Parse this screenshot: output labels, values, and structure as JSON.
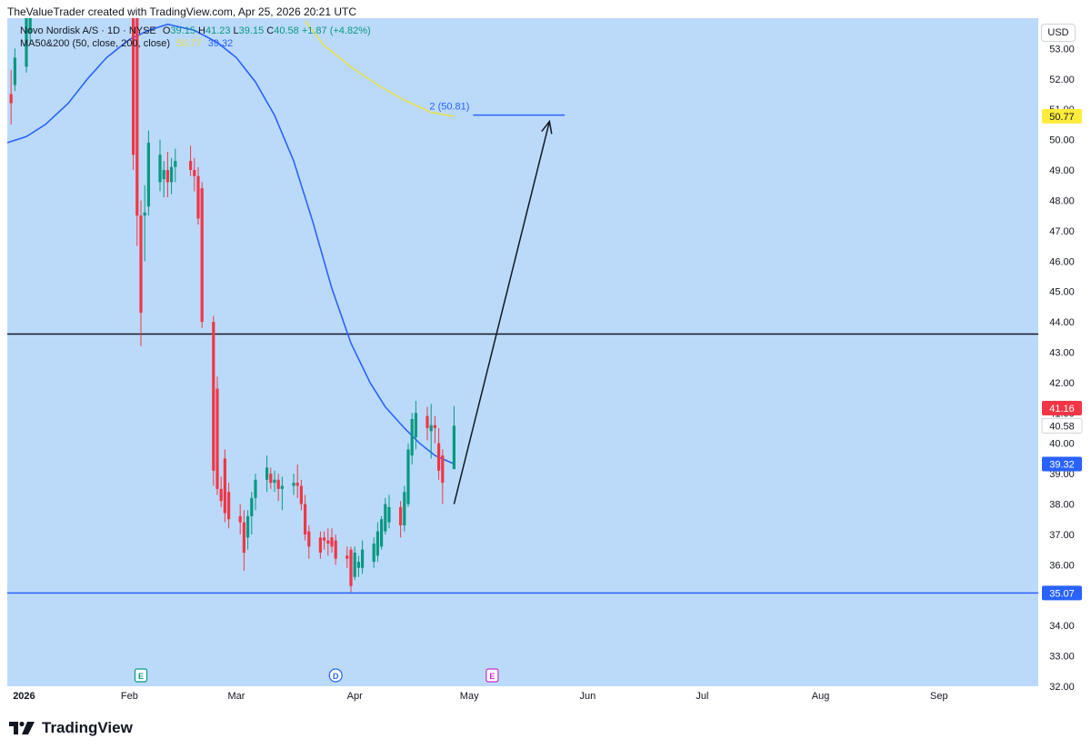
{
  "header": {
    "credit": "TheValueTrader created with TradingView.com, Apr 25, 2026 20:21 UTC"
  },
  "legend": {
    "symbol": "Novo Nordisk A/S · 1D · NYSE",
    "open_label": "O",
    "open": "39.15",
    "high_label": "H",
    "high": "41.23",
    "low_label": "L",
    "low": "39.15",
    "close_label": "C",
    "close": "40.58",
    "change": "+1.87 (+4.82%)",
    "indicator": "MA50&200 (50, close, 200, close)",
    "ma200_value": "50.77",
    "ma50_value": "39.32"
  },
  "currency_badge": "USD",
  "footer": {
    "brand": "TradingView",
    "logo_icon": "tradingview-logo-icon"
  },
  "colors": {
    "background": "#bbdafa",
    "candle_up": "#089981",
    "candle_down": "#f23645",
    "ma50": "#2962ff",
    "ma200": "#e8e050",
    "resistance": "#131722",
    "support": "#2962ff"
  },
  "chart_data": {
    "type": "candlestick",
    "ylim": [
      32,
      54
    ],
    "yticks": [
      "32.00",
      "33.00",
      "34.00",
      "35.00",
      "36.00",
      "37.00",
      "38.00",
      "39.00",
      "40.00",
      "41.00",
      "42.00",
      "43.00",
      "44.00",
      "45.00",
      "46.00",
      "47.00",
      "48.00",
      "49.00",
      "50.00",
      "51.00",
      "52.00",
      "53.00"
    ],
    "x_tick_labels": [
      "2026",
      "Feb",
      "Mar",
      "Apr",
      "May",
      "Jun",
      "Jul",
      "Aug",
      "Sep"
    ],
    "x_tick_dates": [
      "2026-01-01",
      "2026-02-01",
      "2026-03-01",
      "2026-04-01",
      "2026-05-01",
      "2026-06-01",
      "2026-07-01",
      "2026-08-01",
      "2026-09-01"
    ],
    "x_start_date": "2025-12-31",
    "x_end_date": "2026-09-27",
    "price_badges": [
      {
        "value": "50.77",
        "bg": "#ffeb3b",
        "fg": "#131722",
        "y": 50.77
      },
      {
        "value": "41.16",
        "bg": "#f23645",
        "fg": "#ffffff",
        "y": 41.16
      },
      {
        "value": "40.58",
        "bg": "#ffffff",
        "fg": "#131722",
        "y": 40.58
      },
      {
        "value": "39.32",
        "bg": "#2962ff",
        "fg": "#ffffff",
        "y": 39.32
      },
      {
        "value": "35.07",
        "bg": "#2962ff",
        "fg": "#ffffff",
        "y": 35.07
      }
    ],
    "candles": [
      {
        "date": "2026-01-01",
        "o": 51.5,
        "h": 52.3,
        "l": 50.5,
        "c": 51.2
      },
      {
        "date": "2026-01-02",
        "o": 51.8,
        "h": 53.0,
        "l": 51.6,
        "c": 52.7
      },
      {
        "date": "2026-01-05",
        "o": 52.4,
        "h": 55.0,
        "l": 52.2,
        "c": 54.8
      },
      {
        "date": "2026-01-06",
        "o": 53.5,
        "h": 55.0,
        "l": 53.2,
        "c": 54.5
      },
      {
        "date": "2026-02-02",
        "o": 54.0,
        "h": 54.5,
        "l": 49.0,
        "c": 49.5
      },
      {
        "date": "2026-02-03",
        "o": 54.0,
        "h": 54.5,
        "l": 46.5,
        "c": 47.5
      },
      {
        "date": "2026-02-04",
        "o": 47.5,
        "h": 48.0,
        "l": 43.2,
        "c": 44.3
      },
      {
        "date": "2026-02-05",
        "o": 47.5,
        "h": 48.5,
        "l": 46.0,
        "c": 47.6
      },
      {
        "date": "2026-02-06",
        "o": 47.8,
        "h": 50.3,
        "l": 47.5,
        "c": 49.9
      },
      {
        "date": "2026-02-09",
        "o": 48.6,
        "h": 50.0,
        "l": 48.3,
        "c": 49.5
      },
      {
        "date": "2026-02-10",
        "o": 48.7,
        "h": 49.3,
        "l": 48.1,
        "c": 49.0
      },
      {
        "date": "2026-02-11",
        "o": 49.0,
        "h": 49.6,
        "l": 48.1,
        "c": 48.6
      },
      {
        "date": "2026-02-12",
        "o": 48.6,
        "h": 49.4,
        "l": 48.2,
        "c": 49.1
      },
      {
        "date": "2026-02-13",
        "o": 49.1,
        "h": 49.7,
        "l": 48.6,
        "c": 49.3
      },
      {
        "date": "2026-02-17",
        "o": 49.3,
        "h": 49.8,
        "l": 48.8,
        "c": 49.0
      },
      {
        "date": "2026-02-18",
        "o": 49.0,
        "h": 49.4,
        "l": 48.3,
        "c": 48.8
      },
      {
        "date": "2026-02-19",
        "o": 48.8,
        "h": 49.1,
        "l": 47.2,
        "c": 47.4
      },
      {
        "date": "2026-02-20",
        "o": 48.4,
        "h": 48.6,
        "l": 43.8,
        "c": 44.0
      },
      {
        "date": "2026-02-23",
        "o": 44.0,
        "h": 44.2,
        "l": 38.6,
        "c": 39.1
      },
      {
        "date": "2026-02-24",
        "o": 41.8,
        "h": 42.2,
        "l": 38.3,
        "c": 38.5
      },
      {
        "date": "2026-02-25",
        "o": 38.5,
        "h": 38.9,
        "l": 37.9,
        "c": 38.1
      },
      {
        "date": "2026-02-26",
        "o": 39.5,
        "h": 39.8,
        "l": 37.4,
        "c": 37.7
      },
      {
        "date": "2026-02-27",
        "o": 38.4,
        "h": 38.7,
        "l": 37.2,
        "c": 37.5
      },
      {
        "date": "2026-03-02",
        "o": 37.6,
        "h": 38.0,
        "l": 37.0,
        "c": 37.4
      },
      {
        "date": "2026-03-03",
        "o": 37.4,
        "h": 37.8,
        "l": 35.8,
        "c": 36.4
      },
      {
        "date": "2026-03-04",
        "o": 36.9,
        "h": 37.8,
        "l": 36.5,
        "c": 37.6
      },
      {
        "date": "2026-03-05",
        "o": 37.6,
        "h": 38.4,
        "l": 37.0,
        "c": 38.2
      },
      {
        "date": "2026-03-06",
        "o": 38.2,
        "h": 39.0,
        "l": 37.8,
        "c": 38.8
      },
      {
        "date": "2026-03-09",
        "o": 38.8,
        "h": 39.6,
        "l": 38.4,
        "c": 39.2
      },
      {
        "date": "2026-03-10",
        "o": 39.0,
        "h": 39.2,
        "l": 38.5,
        "c": 38.7
      },
      {
        "date": "2026-03-11",
        "o": 38.7,
        "h": 39.1,
        "l": 38.4,
        "c": 38.8
      },
      {
        "date": "2026-03-12",
        "o": 38.8,
        "h": 39.0,
        "l": 38.1,
        "c": 38.5
      },
      {
        "date": "2026-03-13",
        "o": 38.5,
        "h": 38.9,
        "l": 37.8,
        "c": 38.6
      },
      {
        "date": "2026-03-16",
        "o": 38.6,
        "h": 39.0,
        "l": 38.3,
        "c": 38.7
      },
      {
        "date": "2026-03-17",
        "o": 38.7,
        "h": 39.3,
        "l": 38.2,
        "c": 38.6
      },
      {
        "date": "2026-03-18",
        "o": 38.6,
        "h": 38.8,
        "l": 37.8,
        "c": 38.0
      },
      {
        "date": "2026-03-19",
        "o": 38.0,
        "h": 38.3,
        "l": 36.8,
        "c": 37.0
      },
      {
        "date": "2026-03-20",
        "o": 37.1,
        "h": 37.3,
        "l": 36.2,
        "c": 36.6
      },
      {
        "date": "2026-03-23",
        "o": 36.9,
        "h": 37.1,
        "l": 36.2,
        "c": 36.4
      },
      {
        "date": "2026-03-24",
        "o": 36.9,
        "h": 37.1,
        "l": 36.5,
        "c": 36.8
      },
      {
        "date": "2026-03-25",
        "o": 36.8,
        "h": 37.2,
        "l": 36.3,
        "c": 36.7
      },
      {
        "date": "2026-03-26",
        "o": 36.9,
        "h": 37.2,
        "l": 36.4,
        "c": 36.6
      },
      {
        "date": "2026-03-27",
        "o": 36.8,
        "h": 37.0,
        "l": 36.0,
        "c": 36.2
      },
      {
        "date": "2026-03-30",
        "o": 36.3,
        "h": 36.6,
        "l": 35.9,
        "c": 36.2
      },
      {
        "date": "2026-03-31",
        "o": 36.5,
        "h": 36.6,
        "l": 35.1,
        "c": 35.3
      },
      {
        "date": "2026-04-01",
        "o": 35.6,
        "h": 36.6,
        "l": 35.5,
        "c": 36.4
      },
      {
        "date": "2026-04-02",
        "o": 35.9,
        "h": 36.3,
        "l": 35.6,
        "c": 36.1
      },
      {
        "date": "2026-04-03",
        "o": 35.9,
        "h": 36.8,
        "l": 35.7,
        "c": 36.5
      },
      {
        "date": "2026-04-06",
        "o": 36.1,
        "h": 36.9,
        "l": 35.9,
        "c": 36.7
      },
      {
        "date": "2026-04-07",
        "o": 36.3,
        "h": 37.4,
        "l": 36.1,
        "c": 37.1
      },
      {
        "date": "2026-04-08",
        "o": 36.6,
        "h": 37.6,
        "l": 36.5,
        "c": 37.5
      },
      {
        "date": "2026-04-09",
        "o": 37.1,
        "h": 38.2,
        "l": 37.0,
        "c": 38.0
      },
      {
        "date": "2026-04-10",
        "o": 37.4,
        "h": 38.3,
        "l": 37.2,
        "c": 37.9
      },
      {
        "date": "2026-04-13",
        "o": 37.9,
        "h": 38.1,
        "l": 36.9,
        "c": 37.3
      },
      {
        "date": "2026-04-14",
        "o": 37.3,
        "h": 38.6,
        "l": 37.1,
        "c": 38.4
      },
      {
        "date": "2026-04-15",
        "o": 38.0,
        "h": 40.0,
        "l": 37.9,
        "c": 39.8
      },
      {
        "date": "2026-04-16",
        "o": 39.6,
        "h": 41.0,
        "l": 39.3,
        "c": 40.8
      },
      {
        "date": "2026-04-17",
        "o": 40.2,
        "h": 41.4,
        "l": 39.8,
        "c": 41.0
      },
      {
        "date": "2026-04-20",
        "o": 40.9,
        "h": 41.2,
        "l": 40.1,
        "c": 40.5
      },
      {
        "date": "2026-04-21",
        "o": 40.4,
        "h": 41.3,
        "l": 39.5,
        "c": 40.6
      },
      {
        "date": "2026-04-22",
        "o": 40.6,
        "h": 40.9,
        "l": 40.0,
        "c": 40.5
      },
      {
        "date": "2026-04-23",
        "o": 40.0,
        "h": 40.5,
        "l": 38.8,
        "c": 39.1
      },
      {
        "date": "2026-04-24",
        "o": 39.6,
        "h": 39.8,
        "l": 38.0,
        "c": 38.7
      },
      {
        "date": "2026-04-27",
        "o": 39.15,
        "h": 41.23,
        "l": 39.15,
        "c": 40.58
      }
    ],
    "ma50_line": [
      {
        "date": "2025-12-31",
        "v": 49.9
      },
      {
        "date": "2026-01-05",
        "v": 50.1
      },
      {
        "date": "2026-01-10",
        "v": 50.5
      },
      {
        "date": "2026-01-16",
        "v": 51.2
      },
      {
        "date": "2026-01-21",
        "v": 52.0
      },
      {
        "date": "2026-01-26",
        "v": 52.7
      },
      {
        "date": "2026-02-01",
        "v": 53.3
      },
      {
        "date": "2026-02-06",
        "v": 53.6
      },
      {
        "date": "2026-02-11",
        "v": 53.8
      },
      {
        "date": "2026-02-18",
        "v": 53.6
      },
      {
        "date": "2026-02-24",
        "v": 53.2
      },
      {
        "date": "2026-03-01",
        "v": 52.7
      },
      {
        "date": "2026-03-06",
        "v": 51.9
      },
      {
        "date": "2026-03-11",
        "v": 50.8
      },
      {
        "date": "2026-03-16",
        "v": 49.3
      },
      {
        "date": "2026-03-21",
        "v": 47.3
      },
      {
        "date": "2026-03-26",
        "v": 45.1
      },
      {
        "date": "2026-03-31",
        "v": 43.3
      },
      {
        "date": "2026-04-05",
        "v": 42.0
      },
      {
        "date": "2026-04-09",
        "v": 41.2
      },
      {
        "date": "2026-04-14",
        "v": 40.5
      },
      {
        "date": "2026-04-18",
        "v": 40.0
      },
      {
        "date": "2026-04-22",
        "v": 39.6
      },
      {
        "date": "2026-04-27",
        "v": 39.32
      }
    ],
    "ma200_line": [
      {
        "date": "2026-03-19",
        "v": 53.9
      },
      {
        "date": "2026-03-24",
        "v": 53.1
      },
      {
        "date": "2026-03-31",
        "v": 52.4
      },
      {
        "date": "2026-04-07",
        "v": 51.8
      },
      {
        "date": "2026-04-14",
        "v": 51.3
      },
      {
        "date": "2026-04-21",
        "v": 50.9
      },
      {
        "date": "2026-04-27",
        "v": 50.77
      }
    ],
    "horizontal_lines": [
      {
        "name": "resistance",
        "y": 43.6
      },
      {
        "name": "support",
        "y": 35.07
      }
    ],
    "target": {
      "label": "2 (50.81)",
      "y": 50.81,
      "start_date": "2026-05-02",
      "end_date": "2026-05-26"
    },
    "projection_arrow": [
      {
        "date": "2026-04-27",
        "v": 38.0
      },
      {
        "date": "2026-05-22",
        "v": 50.6
      }
    ],
    "event_markers": [
      {
        "label": "E",
        "date": "2026-02-04",
        "kind": "earnings",
        "color": "#089981"
      },
      {
        "label": "D",
        "date": "2026-03-27",
        "kind": "dividend",
        "color": "#2962ff"
      },
      {
        "label": "E",
        "date": "2026-05-07",
        "kind": "earnings",
        "color": "#c730c7"
      }
    ]
  }
}
